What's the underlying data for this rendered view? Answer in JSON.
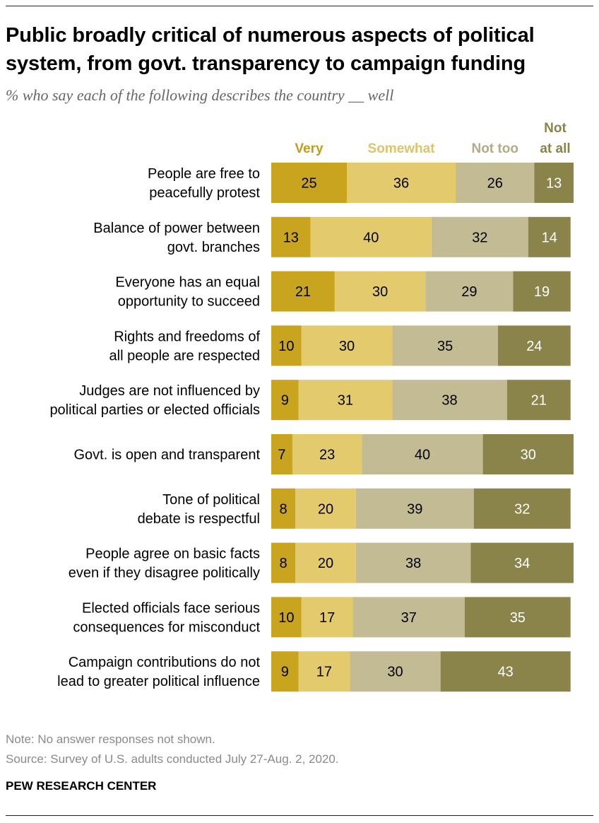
{
  "header": {
    "title": "Public broadly critical of numerous aspects of political system, from govt. transparency to campaign funding",
    "subtitle": "% who say each of the following describes the country __ well"
  },
  "colors": {
    "very": "#c9a41f",
    "somewhat": "#e3cb6d",
    "not_too": "#c2bb93",
    "not_at_all": "#8a834a",
    "very_label": "#c29d1c",
    "somewhat_label": "#ddc46a",
    "not_too_label": "#b2ab86",
    "not_at_all_label": "#8a834a"
  },
  "chart_data": {
    "type": "bar",
    "orientation": "horizontal",
    "stacked": true,
    "title": "Public broadly critical of numerous aspects of political system, from govt. transparency to campaign funding",
    "subtitle": "% who say each of the following describes the country __ well",
    "categories": [
      [
        "People are free to",
        "peacefully protest"
      ],
      [
        "Balance of power between",
        "govt. branches"
      ],
      [
        "Everyone has an equal",
        "opportunity to succeed"
      ],
      [
        "Rights and freedoms of",
        "all people are respected"
      ],
      [
        "Judges are not influenced by",
        "political parties or elected officials"
      ],
      [
        "Govt. is open and transparent"
      ],
      [
        "Tone of political",
        "debate is respectful"
      ],
      [
        "People agree on basic facts",
        "even if they disagree politically"
      ],
      [
        "Elected officials face serious",
        "consequences for misconduct"
      ],
      [
        "Campaign contributions do not",
        "lead to greater political influence"
      ]
    ],
    "series": [
      {
        "name": "Very",
        "label_lines": [
          "Very"
        ],
        "color_key": "very",
        "text_color": "#000000",
        "values": [
          25,
          13,
          21,
          10,
          9,
          7,
          8,
          8,
          10,
          9
        ]
      },
      {
        "name": "Somewhat",
        "label_lines": [
          "Somewhat"
        ],
        "color_key": "somewhat",
        "text_color": "#000000",
        "values": [
          36,
          40,
          30,
          30,
          31,
          23,
          20,
          20,
          17,
          17
        ]
      },
      {
        "name": "Not too",
        "label_lines": [
          "Not too"
        ],
        "color_key": "not_too",
        "text_color": "#000000",
        "values": [
          26,
          32,
          29,
          35,
          38,
          40,
          39,
          38,
          37,
          30
        ]
      },
      {
        "name": "Not at all",
        "label_lines": [
          "Not",
          "at all"
        ],
        "color_key": "not_at_all",
        "text_color": "#ffffff",
        "values": [
          13,
          14,
          19,
          24,
          21,
          30,
          32,
          34,
          35,
          43
        ]
      }
    ],
    "xlim": [
      0,
      100
    ],
    "grid": false,
    "legend": "top"
  },
  "footer": {
    "note": "Note: No answer responses not shown.",
    "source": "Source: Survey of U.S. adults conducted July 27-Aug. 2, 2020.",
    "brand": "PEW RESEARCH CENTER"
  }
}
